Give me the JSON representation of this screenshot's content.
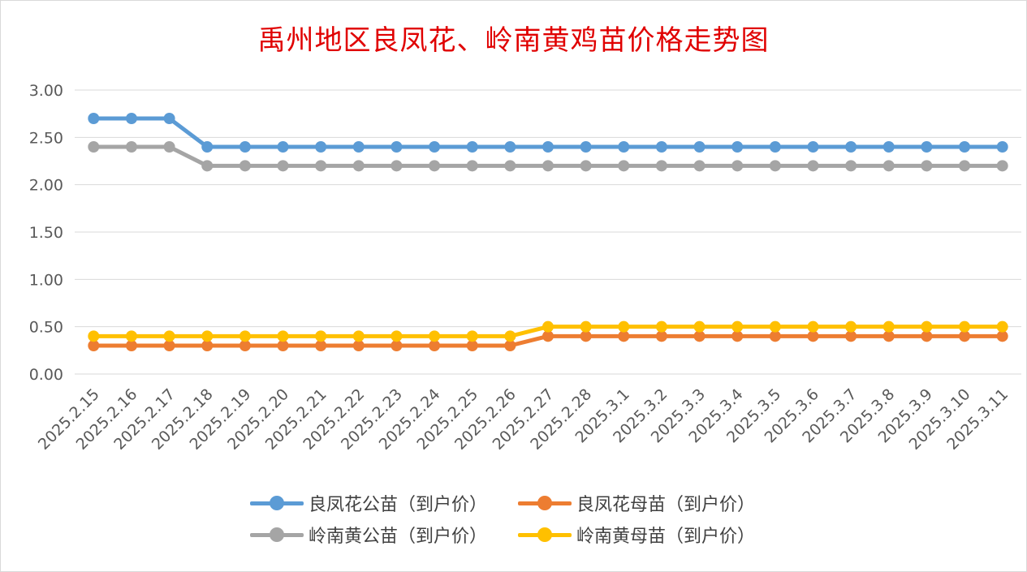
{
  "chart_data": {
    "type": "line",
    "title": "禹州地区良凤花、岭南黄鸡苗价格走势图",
    "categories": [
      "2025.2.15",
      "2025.2.16",
      "2025.2.17",
      "2025.2.18",
      "2025.2.19",
      "2025.2.20",
      "2025.2.21",
      "2025.2.22",
      "2025.2.23",
      "2025.2.24",
      "2025.2.25",
      "2025.2.26",
      "2025.2.27",
      "2025.2.28",
      "2025.3.1",
      "2025.3.2",
      "2025.3.3",
      "2025.3.4",
      "2025.3.5",
      "2025.3.6",
      "2025.3.7",
      "2025.3.8",
      "2025.3.9",
      "2025.3.10",
      "2025.3.11"
    ],
    "ylim": [
      0,
      3
    ],
    "yticks": [
      "0.00",
      "0.50",
      "1.00",
      "1.50",
      "2.00",
      "2.50",
      "3.00"
    ],
    "grid": true,
    "legend_position": "bottom",
    "series": [
      {
        "name": "良凤花公苗（到户价）",
        "color": "#5b9bd5",
        "values": [
          2.7,
          2.7,
          2.7,
          2.4,
          2.4,
          2.4,
          2.4,
          2.4,
          2.4,
          2.4,
          2.4,
          2.4,
          2.4,
          2.4,
          2.4,
          2.4,
          2.4,
          2.4,
          2.4,
          2.4,
          2.4,
          2.4,
          2.4,
          2.4,
          2.4
        ]
      },
      {
        "name": "良凤花母苗（到户价）",
        "color": "#ed7d31",
        "values": [
          0.3,
          0.3,
          0.3,
          0.3,
          0.3,
          0.3,
          0.3,
          0.3,
          0.3,
          0.3,
          0.3,
          0.3,
          0.4,
          0.4,
          0.4,
          0.4,
          0.4,
          0.4,
          0.4,
          0.4,
          0.4,
          0.4,
          0.4,
          0.4,
          0.4
        ]
      },
      {
        "name": "岭南黄公苗（到户价）",
        "color": "#a5a5a5",
        "values": [
          2.4,
          2.4,
          2.4,
          2.2,
          2.2,
          2.2,
          2.2,
          2.2,
          2.2,
          2.2,
          2.2,
          2.2,
          2.2,
          2.2,
          2.2,
          2.2,
          2.2,
          2.2,
          2.2,
          2.2,
          2.2,
          2.2,
          2.2,
          2.2,
          2.2
        ]
      },
      {
        "name": "岭南黄母苗（到户价）",
        "color": "#ffc000",
        "values": [
          0.4,
          0.4,
          0.4,
          0.4,
          0.4,
          0.4,
          0.4,
          0.4,
          0.4,
          0.4,
          0.4,
          0.4,
          0.5,
          0.5,
          0.5,
          0.5,
          0.5,
          0.5,
          0.5,
          0.5,
          0.5,
          0.5,
          0.5,
          0.5,
          0.5
        ]
      }
    ]
  }
}
